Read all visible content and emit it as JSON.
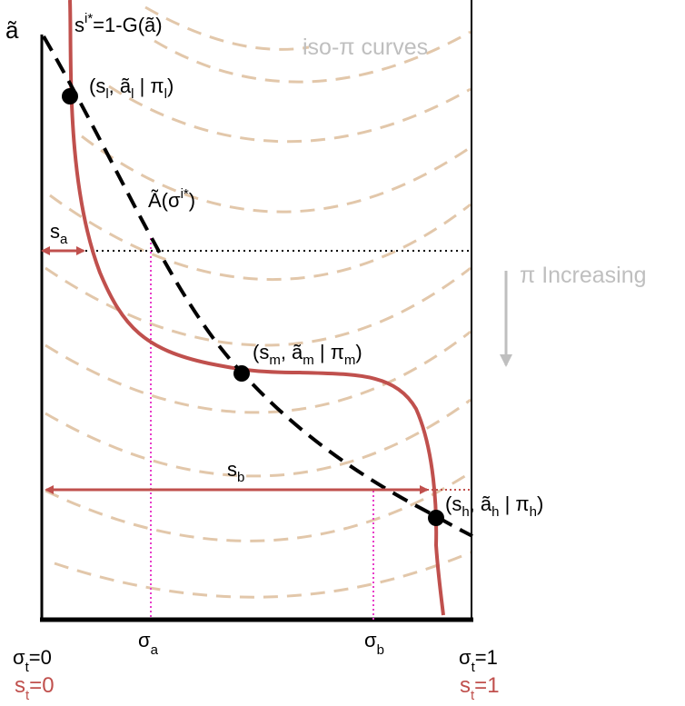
{
  "colors": {
    "axis": "#000000",
    "curve_s": "#c0504d",
    "curve_A": "#000000",
    "iso": "#e2c7aa",
    "guide_pink": "#e83ec9",
    "gray_text": "#bfbfbf"
  },
  "labels": {
    "y_axis": "ã",
    "s_curve": {
      "main": "s",
      "sup": "i*",
      "rest": "=1-G(ã)"
    },
    "A_curve": {
      "main": "Ã(σ",
      "sup": "i*",
      "rest": ")"
    },
    "iso_curves": "iso-π curves",
    "pi_increasing": "π Increasing",
    "s_a": {
      "main": "s",
      "sub": "a"
    },
    "s_b": {
      "main": "s",
      "sub": "b"
    },
    "sigma_a": {
      "main": "σ",
      "sub": "a"
    },
    "sigma_b": {
      "main": "σ",
      "sub": "b"
    },
    "sigma_t0": {
      "main": "σ",
      "sub": "t",
      "rest": "=0"
    },
    "sigma_t1": {
      "main": "σ",
      "sub": "t",
      "rest": "=1"
    },
    "s_t0": {
      "main": "s",
      "sub": "t",
      "rest": "=0"
    },
    "s_t1": {
      "main": "s",
      "sub": "t",
      "rest": "=1"
    }
  },
  "points": {
    "low": {
      "p1": "(s",
      "s1": "l",
      "p2": ", ã",
      "s2": "l",
      "p3": " | π",
      "s3": "l",
      "p4": ")"
    },
    "mid": {
      "p1": "(s",
      "s1": "m",
      "p2": ", ã",
      "s2": "m",
      "p3": " | π",
      "s3": "m",
      "p4": ")"
    },
    "high": {
      "p1": "(s",
      "s1": "h",
      "p2": ", ã",
      "s2": "h",
      "p3": " | π",
      "s3": "h",
      "p4": ")"
    }
  }
}
